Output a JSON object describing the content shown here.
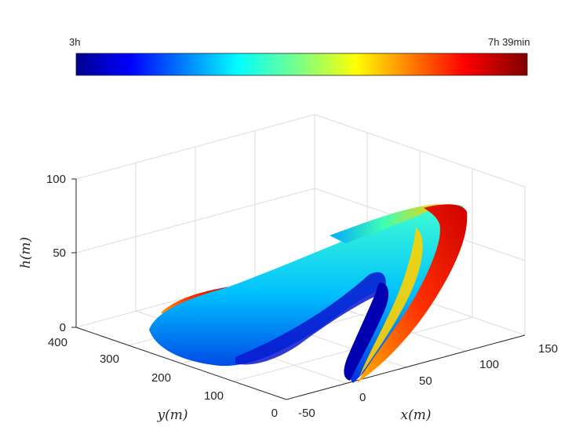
{
  "chart_data": {
    "type": "surface-3d",
    "colorbar": {
      "colormap": "jet",
      "min_label": "3h",
      "max_label": "7h 39min",
      "placement": "top"
    },
    "xlabel": "x(m)",
    "ylabel": "y(m)",
    "zlabel": "h(m)",
    "xlim": [
      -50,
      150
    ],
    "ylim": [
      0,
      400
    ],
    "zlim": [
      0,
      100
    ],
    "x_ticks": [
      "-50",
      "0",
      "50",
      "100",
      "150"
    ],
    "y_ticks": [
      "0",
      "100",
      "200",
      "300",
      "400"
    ],
    "z_ticks": [
      "0",
      "50",
      "100"
    ],
    "grid": true,
    "surface": {
      "description_points": [
        {
          "x": 0,
          "y": 0,
          "h": 0
        },
        {
          "x": 20,
          "y": 20,
          "h": 8
        },
        {
          "x": 60,
          "y": 50,
          "h": 40
        },
        {
          "x": 100,
          "y": 150,
          "h": 80
        },
        {
          "x": 80,
          "y": 300,
          "h": 55
        },
        {
          "x": 10,
          "y": 350,
          "h": 20
        },
        {
          "x": -40,
          "y": 300,
          "h": 8
        },
        {
          "x": -10,
          "y": 100,
          "h": 25
        }
      ]
    }
  }
}
